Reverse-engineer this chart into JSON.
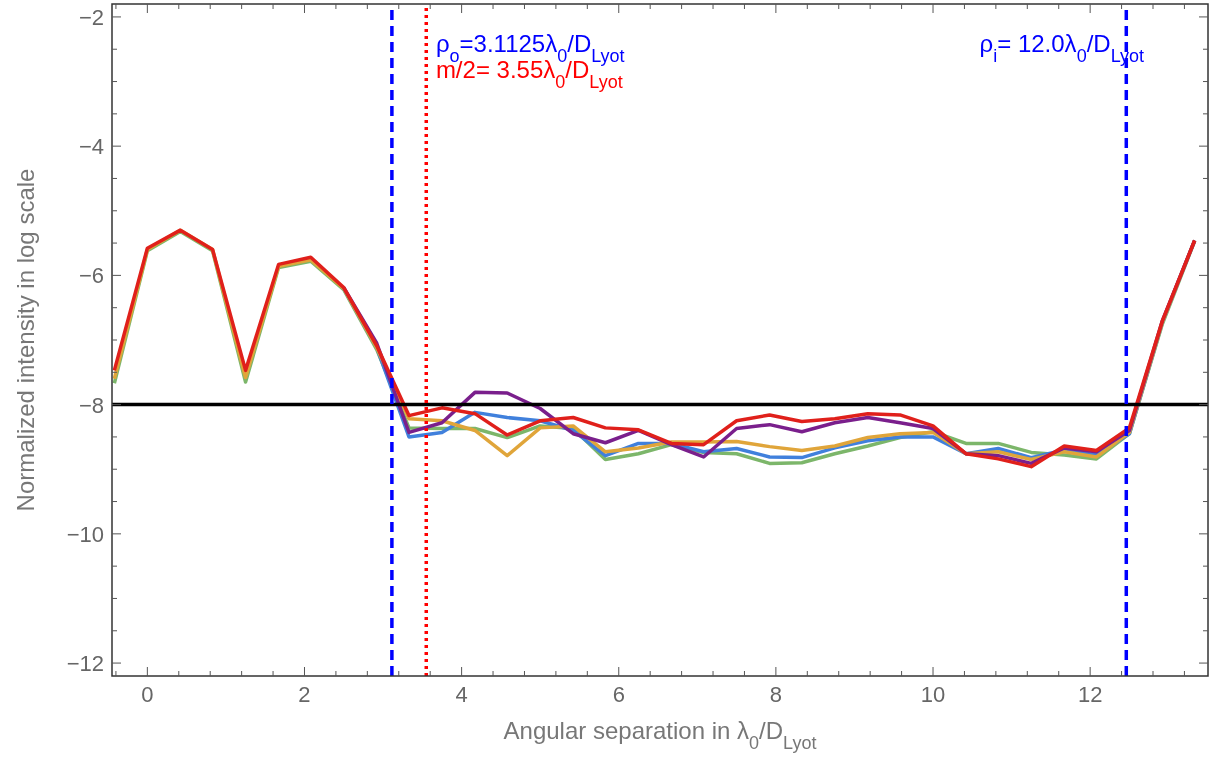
{
  "chart_data": {
    "type": "line",
    "xlabel": "Angular separation in λ$_{0}$/D$_{Lyot}$",
    "ylabel": "Normalized intensity in log scale",
    "x": [
      -0.42,
      0,
      0.42,
      0.83,
      1.25,
      1.67,
      2.08,
      2.5,
      2.92,
      3.33,
      3.75,
      4.17,
      4.58,
      5.0,
      5.42,
      5.83,
      6.25,
      6.67,
      7.08,
      7.5,
      7.92,
      8.33,
      8.75,
      9.17,
      9.58,
      10.0,
      10.42,
      10.83,
      11.25,
      11.67,
      12.08,
      12.5,
      12.92,
      13.33
    ],
    "series": [
      {
        "color": "#7cb66a",
        "values": [
          -7.67,
          -5.62,
          -5.32,
          -5.62,
          -7.65,
          -5.88,
          -5.78,
          -6.22,
          -7.15,
          -8.36,
          -8.37,
          -8.37,
          -8.51,
          -8.33,
          -8.37,
          -8.85,
          -8.76,
          -8.62,
          -8.74,
          -8.76,
          -8.91,
          -8.9,
          -8.76,
          -8.64,
          -8.51,
          -8.42,
          -8.6,
          -8.6,
          -8.74,
          -8.78,
          -8.84,
          -8.45,
          -6.75,
          -5.47
        ]
      },
      {
        "color": "#4080dc",
        "values": [
          null,
          null,
          null,
          null,
          null,
          null,
          null,
          -6.2,
          -7.12,
          -8.5,
          -8.43,
          -8.12,
          -8.2,
          -8.25,
          -8.4,
          -8.79,
          -8.6,
          -8.6,
          -8.73,
          -8.68,
          -8.81,
          -8.82,
          -8.67,
          -8.56,
          -8.5,
          -8.5,
          -8.76,
          -8.68,
          -8.82,
          -8.7,
          -8.78,
          -8.45,
          -6.72,
          -5.46
        ]
      },
      {
        "color": "#e0a53a",
        "values": [
          -7.6,
          -5.6,
          -5.3,
          -5.6,
          -7.58,
          -5.86,
          -5.76,
          -6.2,
          -7.12,
          -8.22,
          -8.25,
          -8.4,
          -8.79,
          -8.36,
          -8.33,
          -8.73,
          -8.67,
          -8.58,
          -8.58,
          -8.57,
          -8.65,
          -8.71,
          -8.64,
          -8.51,
          -8.45,
          -8.43,
          -8.76,
          -8.73,
          -8.85,
          -8.73,
          -8.81,
          -8.43,
          -6.72,
          -5.46
        ]
      },
      {
        "color": "#7a1f8c",
        "values": [
          null,
          null,
          null,
          null,
          null,
          null,
          null,
          -6.19,
          -7.05,
          -8.43,
          -8.28,
          -7.81,
          -7.82,
          -8.06,
          -8.45,
          -8.59,
          -8.4,
          -8.62,
          -8.81,
          -8.37,
          -8.31,
          -8.42,
          -8.28,
          -8.2,
          -8.28,
          -8.37,
          -8.76,
          -8.79,
          -8.91,
          -8.67,
          -8.73,
          -8.4,
          -6.7,
          -5.46
        ]
      },
      {
        "color": "#e0201b",
        "values": [
          -7.47,
          -5.58,
          -5.3,
          -5.6,
          -7.47,
          -5.83,
          -5.72,
          -6.19,
          -7.09,
          -8.17,
          -8.05,
          -8.14,
          -8.47,
          -8.25,
          -8.2,
          -8.36,
          -8.39,
          -8.6,
          -8.62,
          -8.25,
          -8.16,
          -8.26,
          -8.22,
          -8.14,
          -8.16,
          -8.33,
          -8.76,
          -8.84,
          -8.96,
          -8.64,
          -8.71,
          -8.36,
          -6.7,
          -5.46
        ]
      }
    ],
    "xlim": [
      -0.45,
      13.5
    ],
    "ylim": [
      -12.2,
      -1.8
    ],
    "xticks": [
      0,
      2,
      4,
      6,
      8,
      10,
      12,
      {
        "value": -0.4,
        "label": null
      },
      {
        "value": 0.4,
        "label": null
      },
      {
        "value": 0.8,
        "label": null
      },
      {
        "value": 1.2,
        "label": null
      },
      {
        "value": 1.6,
        "label": null
      },
      {
        "value": 2.4,
        "label": null
      },
      {
        "value": 2.8,
        "label": null
      },
      {
        "value": 3.2,
        "label": null
      },
      {
        "value": 3.6,
        "label": null
      },
      {
        "value": 4.4,
        "label": null
      },
      {
        "value": 4.8,
        "label": null
      },
      {
        "value": 5.2,
        "label": null
      },
      {
        "value": 5.6,
        "label": null
      },
      {
        "value": 6.4,
        "label": null
      },
      {
        "value": 6.8,
        "label": null
      },
      {
        "value": 7.2,
        "label": null
      },
      {
        "value": 7.6,
        "label": null
      },
      {
        "value": 8.4,
        "label": null
      },
      {
        "value": 8.8,
        "label": null
      },
      {
        "value": 9.2,
        "label": null
      },
      {
        "value": 9.6,
        "label": null
      },
      {
        "value": 10.4,
        "label": null
      },
      {
        "value": 10.8,
        "label": null
      },
      {
        "value": 11.2,
        "label": null
      },
      {
        "value": 11.6,
        "label": null
      },
      {
        "value": 12.4,
        "label": null
      },
      {
        "value": 12.8,
        "label": null
      },
      {
        "value": 13.2,
        "label": null
      }
    ],
    "yticks": [
      -12,
      -10,
      -8,
      -6,
      -4,
      -2,
      {
        "value": -11.5,
        "label": null
      },
      {
        "value": -11,
        "label": null
      },
      {
        "value": -10.5,
        "label": null
      },
      {
        "value": -9.5,
        "label": null
      },
      {
        "value": -9,
        "label": null
      },
      {
        "value": -8.5,
        "label": null
      },
      {
        "value": -7.5,
        "label": null
      },
      {
        "value": -7,
        "label": null
      },
      {
        "value": -6.5,
        "label": null
      },
      {
        "value": -5.5,
        "label": null
      },
      {
        "value": -5,
        "label": null
      },
      {
        "value": -4.5,
        "label": null
      },
      {
        "value": -3.5,
        "label": null
      },
      {
        "value": -3,
        "label": null
      },
      {
        "value": -2.5,
        "label": null
      }
    ],
    "ref_lines": [
      {
        "axis": "y",
        "value": -8,
        "color": "#000000",
        "line_style": "solid"
      },
      {
        "axis": "x",
        "value": 3.1125,
        "color": "#0000ff",
        "line_style": "dashed",
        "label": "ρ$_{o}$=3.1125λ$_{0}$/D$_{Lyot}$"
      },
      {
        "axis": "x",
        "value": 3.55,
        "color": "#ff0000",
        "line_style": "dotted",
        "label": "m/2= 3.55λ$_{0}$/D$_{Lyot}$"
      },
      {
        "axis": "x",
        "value": 12.46,
        "color": "#0000ff",
        "line_style": "dashed"
      }
    ],
    "annotations": [
      "ρ$_{i}$= 12.0λ$_{0}$/D$_{Lyot}$"
    ],
    "grid": false,
    "marker": "none",
    "line_style": "solid"
  }
}
